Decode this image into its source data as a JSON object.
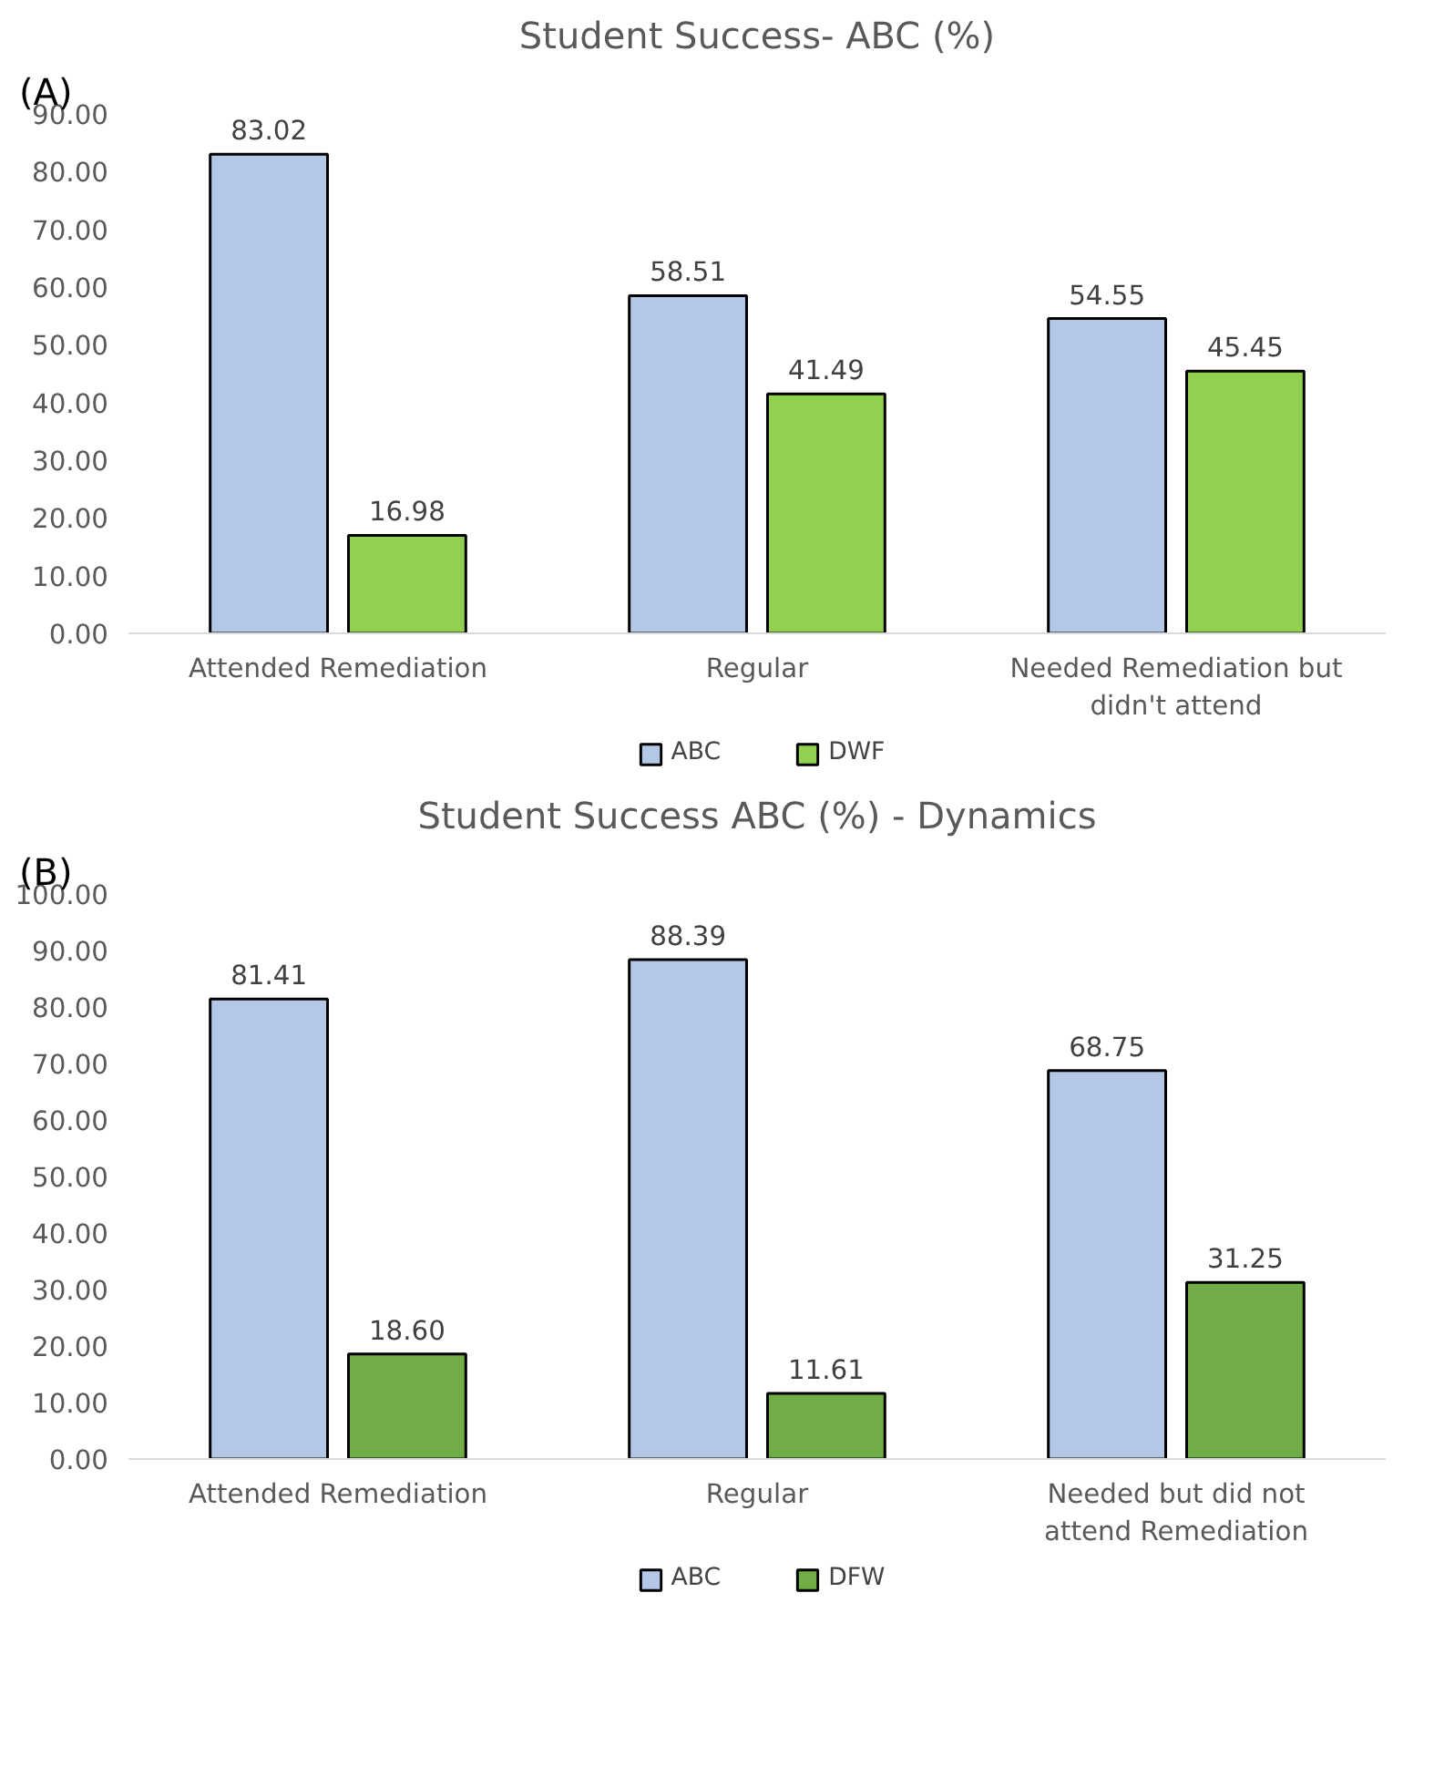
{
  "chart_data": [
    {
      "type": "bar",
      "title": "Student Success- ABC (%)",
      "annotations": [
        "(A)"
      ],
      "categories": [
        "Attended Remediation",
        "Regular",
        "Needed Remediation but didn't attend"
      ],
      "series": [
        {
          "name": "ABC",
          "color": "#b4c7e7",
          "values": [
            83.02,
            58.51,
            54.55
          ],
          "value_labels": [
            "83.02",
            "58.51",
            "54.55"
          ]
        },
        {
          "name": "DWF",
          "color": "#92d050",
          "values": [
            16.98,
            41.49,
            45.45
          ],
          "value_labels": [
            "16.98",
            "41.49",
            "45.45"
          ]
        }
      ],
      "ylim": [
        0,
        90
      ],
      "yticks": [
        {
          "value": 0,
          "label": "0.00"
        },
        {
          "value": 10,
          "label": "10.00"
        },
        {
          "value": 20,
          "label": "20.00"
        },
        {
          "value": 30,
          "label": "30.00"
        },
        {
          "value": 40,
          "label": "40.00"
        },
        {
          "value": 50,
          "label": "50.00"
        },
        {
          "value": 60,
          "label": "60.00"
        },
        {
          "value": 70,
          "label": "70.00"
        },
        {
          "value": 80,
          "label": "80.00"
        },
        {
          "value": 90,
          "label": "90.00"
        }
      ],
      "grid": false,
      "legend": "bottom"
    },
    {
      "type": "bar",
      "title": "Student Success ABC (%) - Dynamics",
      "annotations": [
        "(B)"
      ],
      "categories": [
        "Attended Remediation",
        "Regular",
        "Needed but did not attend Remediation"
      ],
      "series": [
        {
          "name": "ABC",
          "color": "#b4c7e7",
          "values": [
            81.41,
            88.39,
            68.75
          ],
          "value_labels": [
            "81.41",
            "88.39",
            "68.75"
          ]
        },
        {
          "name": "DFW",
          "color": "#70ad47",
          "values": [
            18.6,
            11.61,
            31.25
          ],
          "value_labels": [
            "18.60",
            "11.61",
            "31.25"
          ]
        }
      ],
      "ylim": [
        0,
        100
      ],
      "yticks": [
        {
          "value": 0,
          "label": "0.00"
        },
        {
          "value": 10,
          "label": "10.00"
        },
        {
          "value": 20,
          "label": "20.00"
        },
        {
          "value": 30,
          "label": "30.00"
        },
        {
          "value": 40,
          "label": "40.00"
        },
        {
          "value": 50,
          "label": "50.00"
        },
        {
          "value": 60,
          "label": "60.00"
        },
        {
          "value": 70,
          "label": "70.00"
        },
        {
          "value": 80,
          "label": "80.00"
        },
        {
          "value": 90,
          "label": "90.00"
        },
        {
          "value": 100,
          "label": "100.00"
        }
      ],
      "grid": false,
      "legend": "bottom"
    }
  ]
}
